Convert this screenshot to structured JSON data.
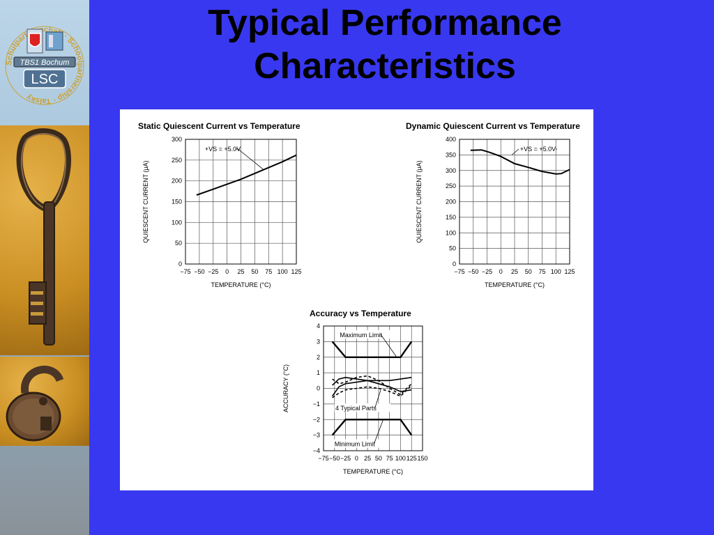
{
  "slide": {
    "title_line1": "Typical Performance",
    "title_line2": "Characteristics"
  },
  "logo": {
    "ring_text": "Schulpartnerschaft · Schoolpartnership · Talsky",
    "badge_top": "TBS1 Bochum",
    "badge_main": "LSC"
  },
  "colors": {
    "slide_bg": "#3838f0",
    "panel_bg": "#ffffff",
    "ink": "#000000"
  },
  "chart_data": [
    {
      "type": "line",
      "title": "Static Quiescent Current vs Temperature",
      "xlabel": "TEMPERATURE (°C)",
      "ylabel": "QUIESCENT CURRENT (μA)",
      "xlim": [
        -75,
        125
      ],
      "ylim": [
        0,
        300
      ],
      "xticks": [
        -75,
        -50,
        -25,
        0,
        25,
        50,
        75,
        100,
        125
      ],
      "yticks": [
        0,
        50,
        100,
        150,
        200,
        250,
        300
      ],
      "grid": true,
      "annotation": "+VS = +5.0V",
      "series": [
        {
          "name": "",
          "x": [
            -55,
            -25,
            0,
            25,
            50,
            75,
            100,
            125
          ],
          "y": [
            166,
            180,
            192,
            204,
            218,
            232,
            246,
            262
          ]
        }
      ]
    },
    {
      "type": "line",
      "title": "Dynamic Quiescent Current vs Temperature",
      "xlabel": "TEMPERATURE (°C)",
      "ylabel": "QUIESCENT CURRENT (μA)",
      "xlim": [
        -75,
        125
      ],
      "ylim": [
        0,
        400
      ],
      "xticks": [
        -75,
        -50,
        -25,
        0,
        25,
        50,
        75,
        100,
        125
      ],
      "yticks": [
        0,
        50,
        100,
        150,
        200,
        250,
        300,
        350,
        400
      ],
      "grid": true,
      "annotation": "+VS = +5.0V",
      "series": [
        {
          "name": "",
          "x": [
            -55,
            -35,
            -20,
            0,
            25,
            50,
            75,
            100,
            110,
            125
          ],
          "y": [
            365,
            366,
            358,
            345,
            322,
            310,
            297,
            289,
            290,
            303
          ]
        }
      ]
    },
    {
      "type": "line",
      "title": "Accuracy vs Temperature",
      "xlabel": "TEMPERATURE (°C)",
      "ylabel": "ACCURACY (°C)",
      "xlim": [
        -75,
        150
      ],
      "ylim": [
        -4,
        4
      ],
      "xticks": [
        -75,
        -50,
        -25,
        0,
        25,
        50,
        75,
        100,
        125,
        150
      ],
      "yticks": [
        -4,
        -3,
        -2,
        -1,
        0,
        1,
        2,
        3,
        4
      ],
      "grid": true,
      "annotations": [
        "Maximum Limit",
        "4 Typical Parts",
        "Minimum Limit"
      ],
      "series": [
        {
          "name": "Maximum Limit",
          "style": "limit",
          "x": [
            -55,
            -25,
            100,
            125
          ],
          "y": [
            3,
            2,
            2,
            3
          ]
        },
        {
          "name": "Minimum Limit",
          "style": "limit",
          "x": [
            -55,
            -25,
            100,
            125
          ],
          "y": [
            -3,
            -2,
            -2,
            -3
          ]
        },
        {
          "name": "",
          "style": "solid",
          "x": [
            -55,
            -40,
            -25,
            0,
            25,
            50,
            75,
            100,
            125
          ],
          "y": [
            0.2,
            0.6,
            0.7,
            0.6,
            0.5,
            0.5,
            0.5,
            0.6,
            0.7
          ]
        },
        {
          "name": "",
          "style": "solid",
          "x": [
            -55,
            -40,
            -25,
            0,
            25,
            50,
            75,
            100,
            125
          ],
          "y": [
            -0.5,
            0.1,
            0.3,
            0.4,
            0.5,
            0.3,
            0.1,
            -0.2,
            -0.1
          ]
        },
        {
          "name": "",
          "style": "dashed",
          "x": [
            -55,
            -40,
            -25,
            0,
            25,
            50,
            75,
            100,
            125
          ],
          "y": [
            0.6,
            0.3,
            0.4,
            0.7,
            0.8,
            0.5,
            0.0,
            -0.4,
            0.3
          ]
        },
        {
          "name": "",
          "style": "dashed",
          "x": [
            -55,
            -40,
            -25,
            0,
            25,
            50,
            75,
            100,
            125
          ],
          "y": [
            -0.6,
            -0.3,
            -0.1,
            0.0,
            0.1,
            0.0,
            -0.2,
            -0.5,
            0.2
          ]
        }
      ]
    }
  ]
}
